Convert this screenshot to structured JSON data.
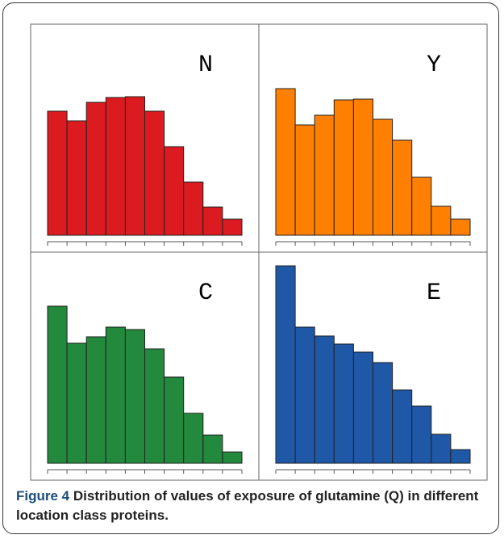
{
  "chart_data": [
    {
      "type": "histogram",
      "title": "N",
      "bins": [
        0,
        1,
        2,
        3,
        4,
        5,
        6,
        7,
        8,
        9,
        10
      ],
      "values": [
        154,
        142,
        165,
        171,
        172,
        154,
        110,
        66,
        35,
        20
      ],
      "color": "#db1b1f",
      "ylim": [
        0,
        262
      ]
    },
    {
      "type": "histogram",
      "title": "Y",
      "bins": [
        0,
        1,
        2,
        3,
        4,
        5,
        6,
        7,
        8,
        9,
        10
      ],
      "values": [
        182,
        137,
        149,
        168,
        169,
        144,
        118,
        72,
        36,
        20
      ],
      "color": "#ff8000",
      "ylim": [
        0,
        262
      ]
    },
    {
      "type": "histogram",
      "title": "C",
      "bins": [
        0,
        1,
        2,
        3,
        4,
        5,
        6,
        7,
        8,
        9,
        10
      ],
      "values": [
        195,
        149,
        157,
        169,
        166,
        142,
        107,
        62,
        35,
        14
      ],
      "color": "#22893d",
      "ylim": [
        0,
        262
      ]
    },
    {
      "type": "histogram",
      "title": "E",
      "bins": [
        0,
        1,
        2,
        3,
        4,
        5,
        6,
        7,
        8,
        9,
        10
      ],
      "values": [
        245,
        169,
        158,
        148,
        138,
        125,
        91,
        71,
        36,
        17
      ],
      "color": "#1f58a6",
      "ylim": [
        0,
        262
      ]
    }
  ],
  "caption": {
    "label": "Figure 4",
    "text": "Distribution of values of exposure of glutamine (Q) in different location class proteins."
  }
}
